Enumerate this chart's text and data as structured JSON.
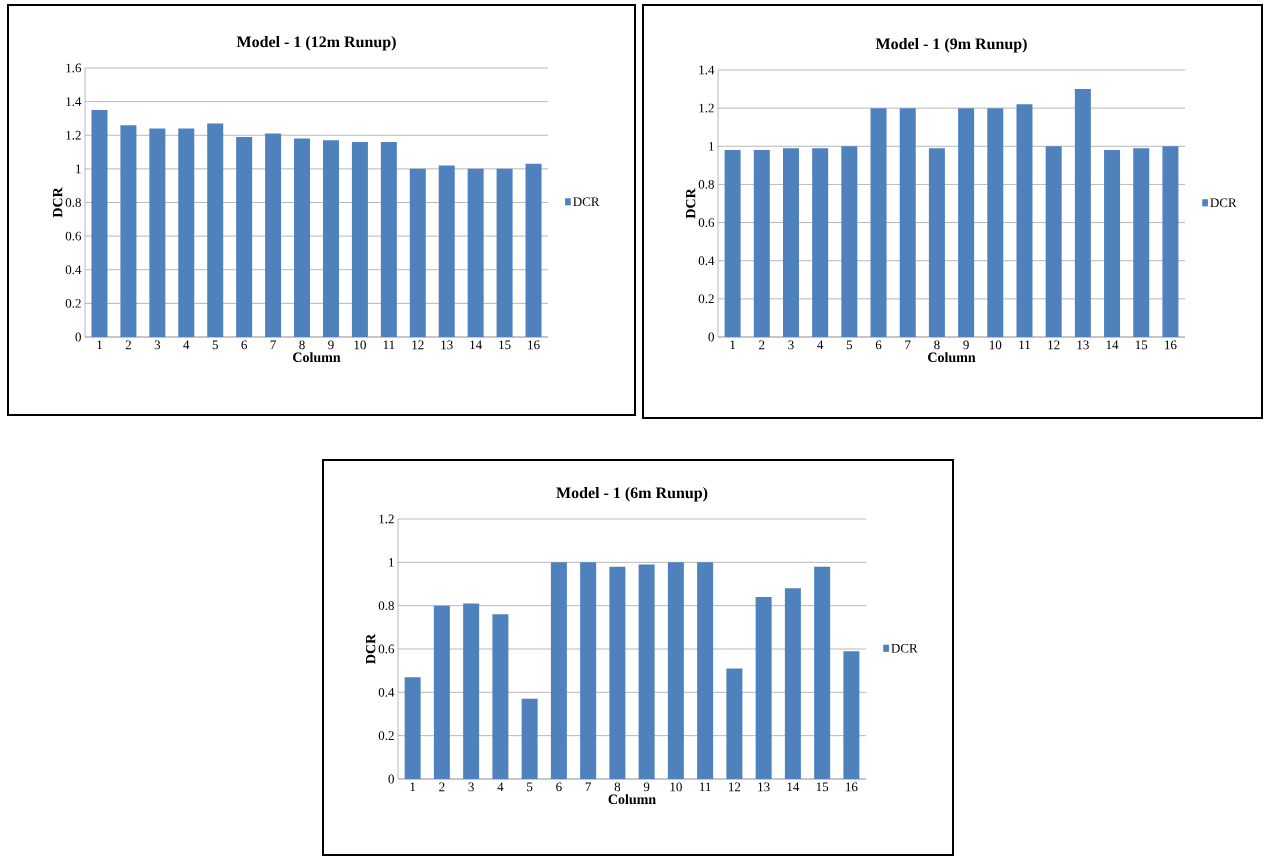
{
  "chart_data": [
    {
      "type": "bar",
      "title": "Model - 1 (12m Runup)",
      "xlabel": "Column",
      "ylabel": "DCR",
      "categories": [
        "1",
        "2",
        "3",
        "4",
        "5",
        "6",
        "7",
        "8",
        "9",
        "10",
        "11",
        "12",
        "13",
        "14",
        "15",
        "16"
      ],
      "series": [
        {
          "name": "DCR",
          "color": "#4f81bd",
          "values": [
            1.35,
            1.26,
            1.24,
            1.24,
            1.27,
            1.19,
            1.21,
            1.18,
            1.17,
            1.16,
            1.16,
            1.0,
            1.02,
            1.0,
            1.0,
            1.03
          ]
        }
      ],
      "ylim": [
        0,
        1.6
      ],
      "yticks": [
        0,
        0.2,
        0.4,
        0.6,
        0.8,
        1,
        1.2,
        1.4,
        1.6
      ],
      "grid": "y",
      "legend": "right"
    },
    {
      "type": "bar",
      "title": "Model - 1 (9m Runup)",
      "xlabel": "Column",
      "ylabel": "DCR",
      "categories": [
        "1",
        "2",
        "3",
        "4",
        "5",
        "6",
        "7",
        "8",
        "9",
        "10",
        "11",
        "12",
        "13",
        "14",
        "15",
        "16"
      ],
      "series": [
        {
          "name": "DCR",
          "color": "#4f81bd",
          "values": [
            0.98,
            0.98,
            0.99,
            0.99,
            1.0,
            1.2,
            1.2,
            0.99,
            1.2,
            1.2,
            1.22,
            1.0,
            1.3,
            0.98,
            0.99,
            1.0
          ]
        }
      ],
      "ylim": [
        0,
        1.4
      ],
      "yticks": [
        0,
        0.2,
        0.4,
        0.6,
        0.8,
        1,
        1.2,
        1.4
      ],
      "grid": "y",
      "legend": "right"
    },
    {
      "type": "bar",
      "title": "Model - 1 (6m Runup)",
      "xlabel": "Column",
      "ylabel": "DCR",
      "categories": [
        "1",
        "2",
        "3",
        "4",
        "5",
        "6",
        "7",
        "8",
        "9",
        "10",
        "11",
        "12",
        "13",
        "14",
        "15",
        "16"
      ],
      "series": [
        {
          "name": "DCR",
          "color": "#4f81bd",
          "values": [
            0.47,
            0.8,
            0.81,
            0.76,
            0.37,
            1.0,
            1.0,
            0.98,
            0.99,
            1.0,
            1.0,
            0.51,
            0.84,
            0.88,
            0.98,
            0.59
          ]
        }
      ],
      "ylim": [
        0,
        1.2
      ],
      "yticks": [
        0,
        0.2,
        0.4,
        0.6,
        0.8,
        1,
        1.2
      ],
      "grid": "y",
      "legend": "right"
    }
  ]
}
